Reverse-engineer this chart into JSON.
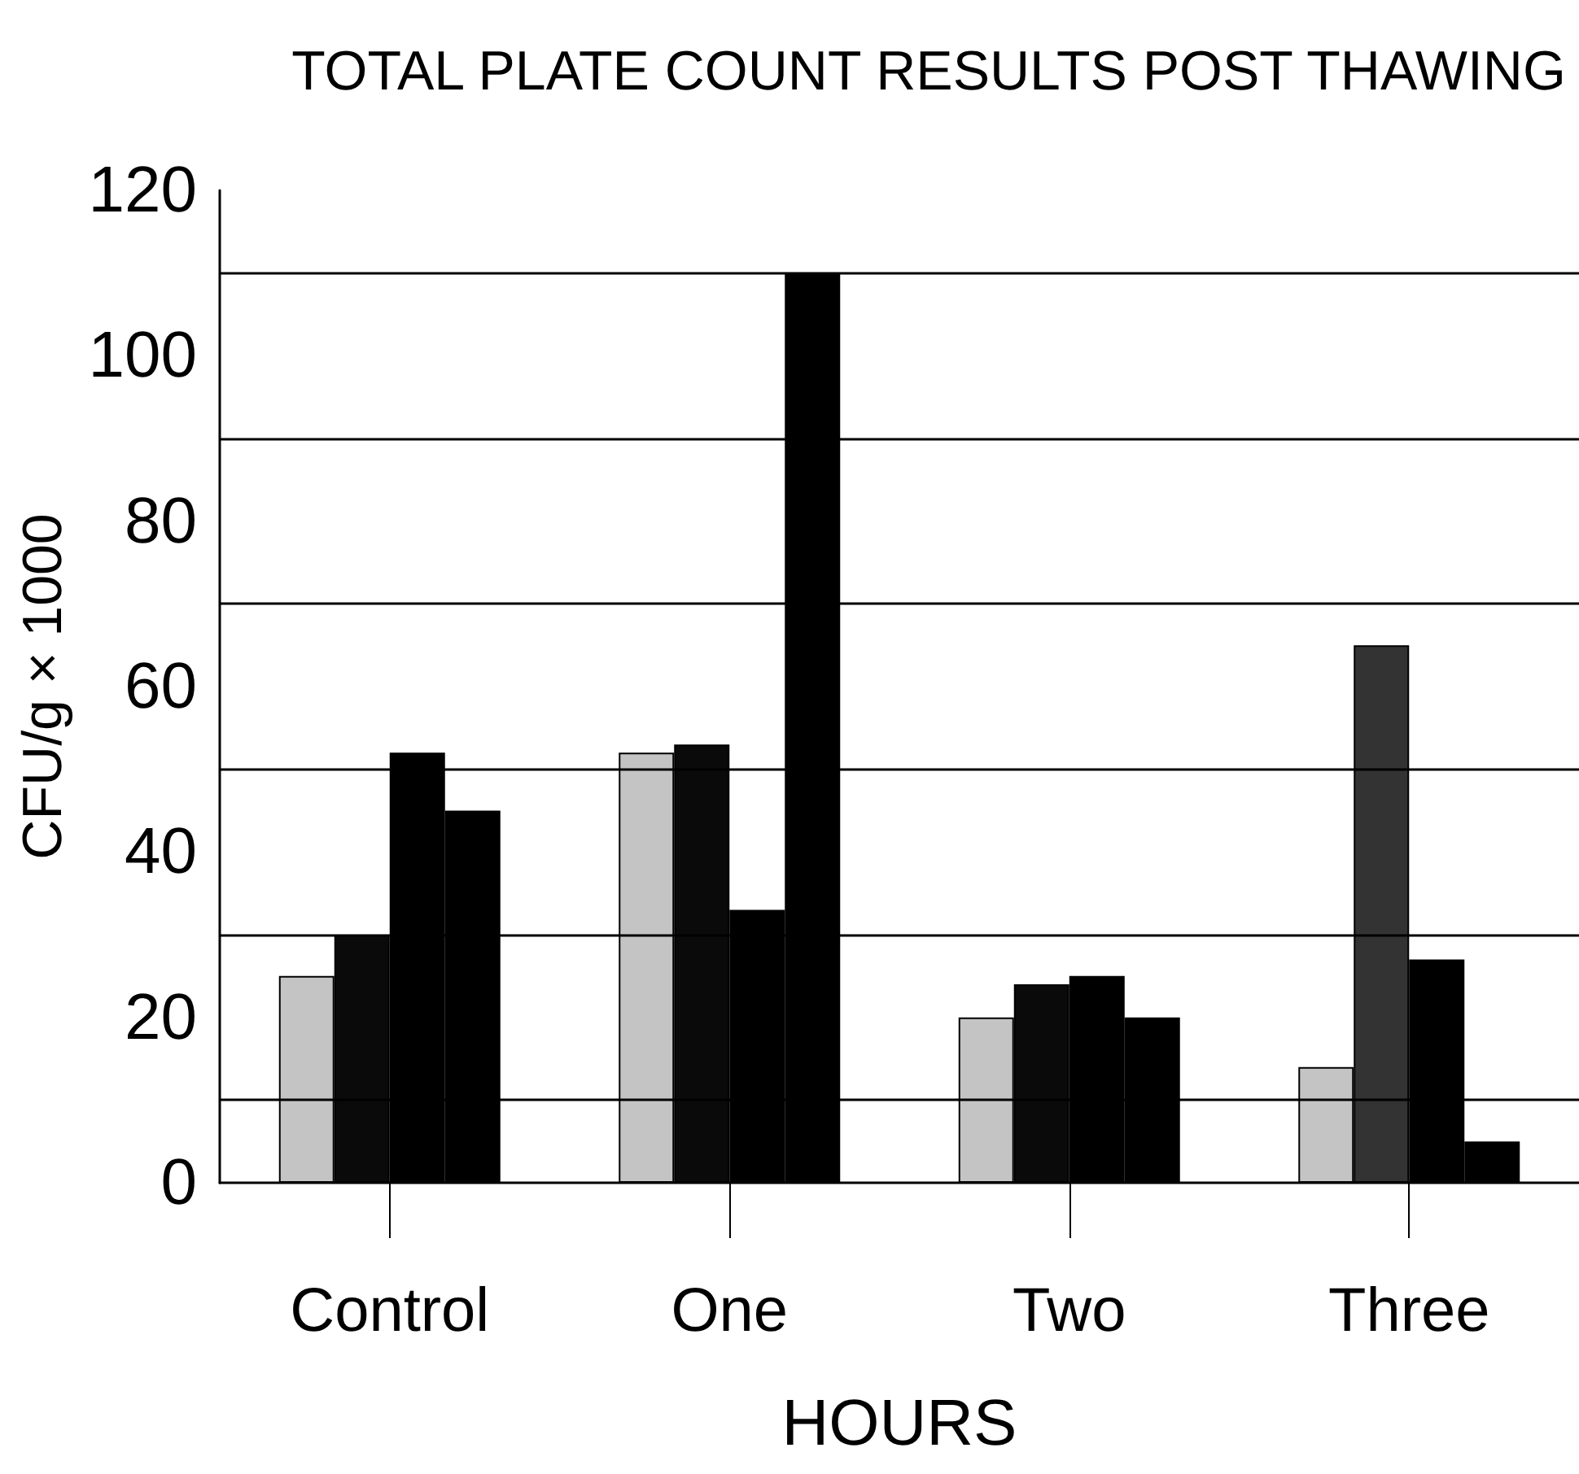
{
  "chart_data": {
    "type": "bar",
    "title": "TOTAL PLATE COUNT RESULTS POST THAWING",
    "xlabel": "HOURS",
    "ylabel": "CFU/g × 1000",
    "categories": [
      "Control",
      "One",
      "Two",
      "Three"
    ],
    "series": [
      {
        "color": "#c4c4c4",
        "values": [
          25,
          52,
          20,
          14
        ]
      },
      {
        "color": "#0a0a0a",
        "colors": [
          "#0a0a0a",
          "#0a0a0a",
          "#0a0a0a",
          "#333333"
        ],
        "values": [
          30,
          53,
          24,
          65
        ]
      },
      {
        "color": "#000000",
        "values": [
          52,
          33,
          25,
          27
        ]
      },
      {
        "color": "#000000",
        "values": [
          45,
          110,
          20,
          5
        ]
      }
    ],
    "ylim": [
      0,
      120
    ],
    "yticks": [
      0,
      {
        "value": 10,
        "label": null
      },
      20,
      {
        "value": 30,
        "label": null
      },
      40,
      {
        "value": 50,
        "label": null
      },
      60,
      {
        "value": 70,
        "label": null
      },
      80,
      {
        "value": 90,
        "label": null
      },
      100,
      {
        "value": 110,
        "label": null
      },
      120
    ],
    "grid": "y"
  }
}
